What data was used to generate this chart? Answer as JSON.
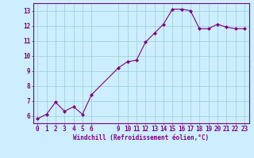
{
  "x": [
    0,
    1,
    2,
    3,
    4,
    5,
    6,
    9,
    10,
    11,
    12,
    13,
    14,
    15,
    16,
    17,
    18,
    19,
    20,
    21,
    22,
    23
  ],
  "y": [
    5.8,
    6.1,
    6.9,
    6.3,
    6.6,
    6.1,
    7.4,
    9.2,
    9.6,
    9.7,
    10.9,
    11.5,
    12.1,
    13.1,
    13.1,
    13.0,
    11.8,
    11.8,
    12.1,
    11.9,
    11.8,
    11.8
  ],
  "x_ticks": [
    0,
    1,
    2,
    3,
    4,
    5,
    6,
    9,
    10,
    11,
    12,
    13,
    14,
    15,
    16,
    17,
    18,
    19,
    20,
    21,
    22,
    23
  ],
  "y_ticks": [
    6,
    7,
    8,
    9,
    10,
    11,
    12,
    13
  ],
  "ylim": [
    5.5,
    13.5
  ],
  "xlim": [
    -0.5,
    23.5
  ],
  "xlabel": "Windchill (Refroidissement éolien,°C)",
  "line_color": "#800080",
  "marker": "D",
  "marker_size": 2,
  "line_width": 0.8,
  "bg_color": "#cceeff",
  "grid_color": "#99cccc",
  "tick_fontsize": 5.5,
  "xlabel_fontsize": 5.5
}
